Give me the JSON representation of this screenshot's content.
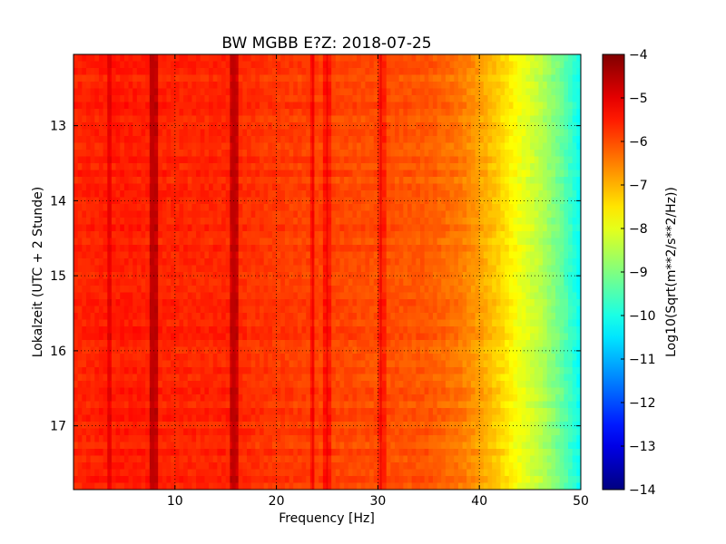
{
  "chart_data": {
    "type": "heatmap",
    "title": "BW MGBB E?Z: 2018-07-25",
    "xlabel": "Frequency [Hz]",
    "ylabel": "Lokalzeit (UTC + 2 Stunde)",
    "xlim": [
      0,
      50
    ],
    "ylim": [
      12.05,
      17.85
    ],
    "x_ticks": [
      10,
      20,
      30,
      40,
      50
    ],
    "x_tick_labels": [
      "10",
      "20",
      "30",
      "40",
      "50"
    ],
    "y_ticks": [
      13,
      14,
      15,
      16,
      17
    ],
    "y_tick_labels": [
      "13",
      "14",
      "15",
      "16",
      "17"
    ],
    "y_inverted": true,
    "grid": true,
    "grid_style": "dotted",
    "colormap": "jet",
    "colorbar": {
      "label": "Log10(Sqrt(m**2/s**2/Hz))",
      "range": [
        -14,
        -4
      ],
      "ticks": [
        -4,
        -5,
        -6,
        -7,
        -8,
        -9,
        -10,
        -11,
        -12,
        -13,
        -14
      ],
      "tick_labels": [
        "−4",
        "−5",
        "−6",
        "−7",
        "−8",
        "−9",
        "−10",
        "−11",
        "−12",
        "−13",
        "−14"
      ]
    },
    "spectrum_profile": {
      "frequency_hz": [
        0,
        5,
        10,
        15,
        20,
        25,
        30,
        35,
        38,
        40,
        42,
        44,
        46,
        48,
        50
      ],
      "level": [
        -5.6,
        -5.5,
        -5.6,
        -5.6,
        -5.8,
        -5.9,
        -6.0,
        -6.1,
        -6.4,
        -6.8,
        -7.3,
        -7.9,
        -8.4,
        -9.2,
        -10.2
      ]
    },
    "spectral_lines_hz": [
      3.5,
      7.8,
      15.8,
      23.6,
      25.0,
      30.3
    ],
    "strong_lines_hz": [
      7.8,
      15.8
    ]
  }
}
